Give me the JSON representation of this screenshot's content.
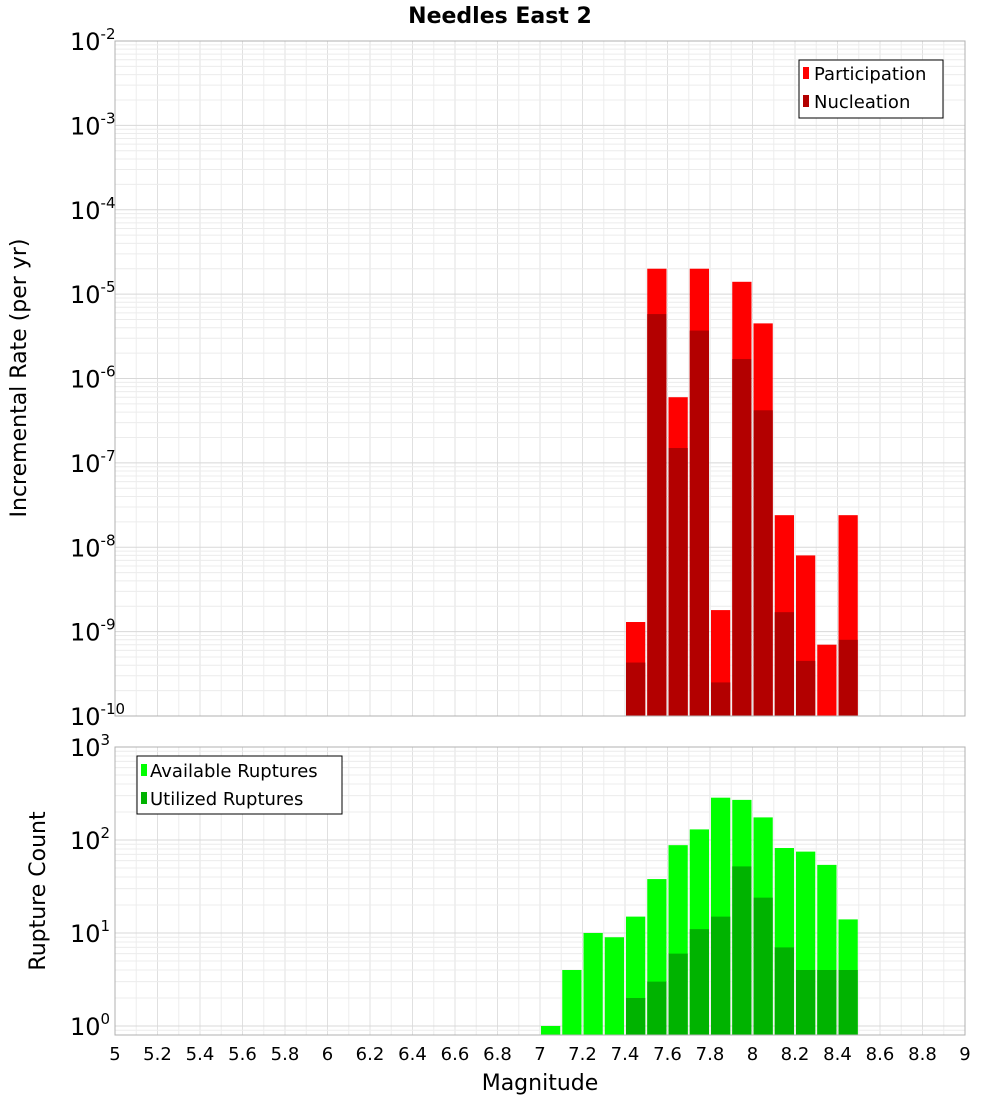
{
  "chart_data": [
    {
      "type": "bar",
      "title": "Needles East 2",
      "xlabel": "Magnitude",
      "ylabel": "Incremental Rate (per yr)",
      "yscale": "log",
      "ylim": [
        1e-10,
        0.01
      ],
      "xlim": [
        5,
        9
      ],
      "bin_width": 0.1,
      "grid": true,
      "legend_position": "top-right",
      "x": [
        7.45,
        7.55,
        7.65,
        7.75,
        7.85,
        7.95,
        8.05,
        8.15,
        8.25,
        8.35,
        8.45
      ],
      "series": [
        {
          "name": "Participation",
          "color": "#ff0000",
          "values": [
            1.3e-09,
            2e-05,
            6e-07,
            2e-05,
            1.8e-09,
            1.4e-05,
            4.5e-06,
            2.4e-08,
            8e-09,
            7e-10,
            2.4e-08
          ]
        },
        {
          "name": "Nucleation",
          "color": "#b30000",
          "values": [
            4.3e-10,
            5.8e-06,
            1.5e-07,
            3.7e-06,
            2.5e-10,
            1.7e-06,
            4.2e-07,
            1.7e-09,
            4.5e-10,
            null,
            8e-10
          ]
        }
      ]
    },
    {
      "type": "bar",
      "xlabel": "Magnitude",
      "ylabel": "Rupture Count",
      "yscale": "log",
      "ylim": [
        0.8,
        1000
      ],
      "xlim": [
        5,
        9
      ],
      "bin_width": 0.1,
      "grid": true,
      "legend_position": "top-left",
      "x": [
        7.05,
        7.15,
        7.25,
        7.35,
        7.45,
        7.55,
        7.65,
        7.75,
        7.85,
        7.95,
        8.05,
        8.15,
        8.25,
        8.35,
        8.45
      ],
      "series": [
        {
          "name": "Available Ruptures",
          "color": "#00ff00",
          "values": [
            1,
            4,
            10,
            9,
            15,
            38,
            88,
            130,
            285,
            270,
            175,
            82,
            75,
            54,
            14
          ]
        },
        {
          "name": "Utilized Ruptures",
          "color": "#00b300",
          "values": [
            null,
            null,
            null,
            null,
            2,
            3,
            6,
            11,
            15,
            52,
            24,
            7,
            4,
            4,
            4
          ]
        }
      ]
    }
  ],
  "x_ticks": [
    "5",
    "5.2",
    "5.4",
    "5.6",
    "5.8",
    "6",
    "6.2",
    "6.4",
    "6.6",
    "6.8",
    "7",
    "7.2",
    "7.4",
    "7.6",
    "7.8",
    "8",
    "8.2",
    "8.4",
    "8.6",
    "8.8",
    "9"
  ],
  "top_y_ticks": [
    {
      "base": "10",
      "exp": "-2",
      "value": 0.01
    },
    {
      "base": "10",
      "exp": "-3",
      "value": 0.001
    },
    {
      "base": "10",
      "exp": "-4",
      "value": 0.0001
    },
    {
      "base": "10",
      "exp": "-5",
      "value": 1e-05
    },
    {
      "base": "10",
      "exp": "-6",
      "value": 1e-06
    },
    {
      "base": "10",
      "exp": "-7",
      "value": 1e-07
    },
    {
      "base": "10",
      "exp": "-8",
      "value": 1e-08
    },
    {
      "base": "10",
      "exp": "-9",
      "value": 1e-09
    },
    {
      "base": "10",
      "exp": "-10",
      "value": 1e-10
    }
  ],
  "bottom_y_ticks": [
    {
      "base": "10",
      "exp": "3",
      "value": 1000
    },
    {
      "base": "10",
      "exp": "2",
      "value": 100
    },
    {
      "base": "10",
      "exp": "1",
      "value": 10
    },
    {
      "base": "10",
      "exp": "0",
      "value": 1
    }
  ]
}
